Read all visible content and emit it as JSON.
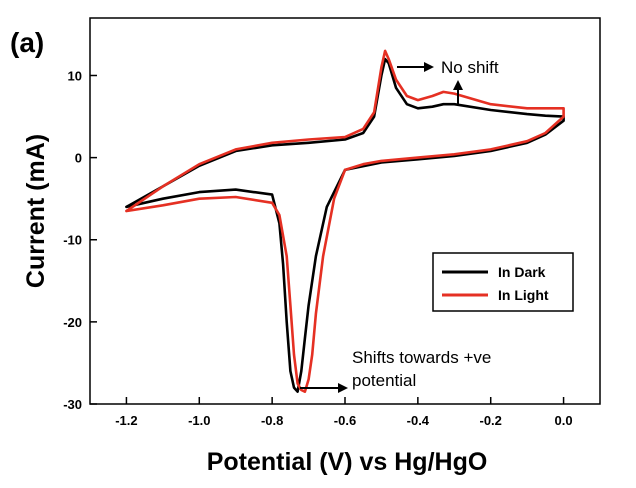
{
  "chart_data": {
    "type": "line",
    "panel_label": "(a)",
    "xlabel": "Potential (V) vs Hg/HgO",
    "ylabel": "Current (mA)",
    "xlim": [
      -1.3,
      0.1
    ],
    "ylim": [
      -30,
      17
    ],
    "x_ticks": [
      -1.2,
      -1.0,
      -0.8,
      -0.6,
      -0.4,
      -0.2,
      0.0
    ],
    "x_tick_labels": [
      "-1.2",
      "-1.0",
      "-0.8",
      "-0.6",
      "-0.4",
      "-0.2",
      "0.0"
    ],
    "y_ticks": [
      -30,
      -20,
      -10,
      0,
      10
    ],
    "y_tick_labels": [
      "-30",
      "-20",
      "-10",
      "0",
      "10"
    ],
    "grid": false,
    "legend_position": "lower-right",
    "annotations": [
      "No shift",
      "Shifts towards +ve",
      "potential"
    ],
    "series": [
      {
        "name": "In Dark",
        "color": "#000000",
        "x": [
          -1.2,
          -1.1,
          -1.0,
          -0.9,
          -0.8,
          -0.78,
          -0.77,
          -0.76,
          -0.75,
          -0.74,
          -0.73,
          -0.72,
          -0.71,
          -0.7,
          -0.68,
          -0.65,
          -0.6,
          -0.5,
          -0.4,
          -0.3,
          -0.2,
          -0.1,
          -0.05,
          0.0,
          0.0,
          -0.05,
          -0.1,
          -0.2,
          -0.3,
          -0.33,
          -0.36,
          -0.4,
          -0.43,
          -0.46,
          -0.48,
          -0.49,
          -0.5,
          -0.52,
          -0.55,
          -0.6,
          -0.7,
          -0.8,
          -0.9,
          -1.0,
          -1.1,
          -1.2
        ],
        "y": [
          -6,
          -5,
          -4.2,
          -3.9,
          -4.5,
          -8,
          -13,
          -20,
          -26,
          -28,
          -28.5,
          -26,
          -22,
          -18,
          -12,
          -6,
          -1.5,
          -0.6,
          -0.2,
          0.2,
          0.8,
          1.8,
          2.8,
          4.5,
          5,
          5.1,
          5.3,
          5.8,
          6.5,
          6.5,
          6.2,
          6,
          6.5,
          8.5,
          11.5,
          12,
          10,
          5,
          3,
          2.2,
          1.8,
          1.5,
          0.8,
          -1,
          -3.5,
          -6
        ]
      },
      {
        "name": "In Light",
        "color": "#e53023",
        "x": [
          -1.2,
          -1.1,
          -1.0,
          -0.9,
          -0.8,
          -0.78,
          -0.76,
          -0.75,
          -0.74,
          -0.73,
          -0.72,
          -0.71,
          -0.7,
          -0.69,
          -0.68,
          -0.66,
          -0.63,
          -0.6,
          -0.55,
          -0.5,
          -0.4,
          -0.3,
          -0.2,
          -0.1,
          -0.05,
          0.0,
          0.0,
          -0.05,
          -0.1,
          -0.2,
          -0.3,
          -0.33,
          -0.36,
          -0.4,
          -0.43,
          -0.46,
          -0.48,
          -0.49,
          -0.5,
          -0.52,
          -0.55,
          -0.6,
          -0.7,
          -0.8,
          -0.9,
          -1.0,
          -1.1,
          -1.2
        ],
        "y": [
          -6.5,
          -5.8,
          -5,
          -4.8,
          -5.5,
          -7,
          -12,
          -18,
          -24,
          -27.5,
          -28.3,
          -28.5,
          -27,
          -24,
          -19,
          -12,
          -5,
          -1.5,
          -0.8,
          -0.4,
          0,
          0.4,
          1,
          2,
          3,
          5,
          6,
          6,
          6,
          6.5,
          7.8,
          8,
          7.5,
          7,
          7.5,
          9.5,
          12,
          13,
          11,
          5.5,
          3.5,
          2.5,
          2.2,
          1.8,
          1,
          -0.8,
          -3.5,
          -6.5
        ]
      }
    ]
  }
}
